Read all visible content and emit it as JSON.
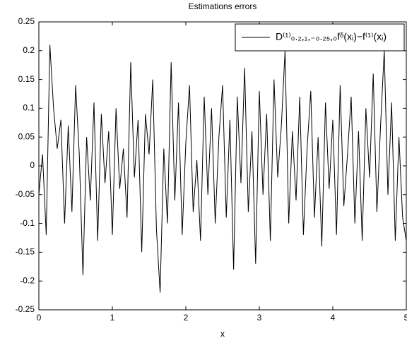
{
  "chart_data": {
    "type": "line",
    "title": "Estimations errors",
    "x_label": "x",
    "x": [
      0,
      0.05,
      0.1,
      0.15,
      0.2,
      0.25,
      0.3,
      0.35,
      0.4,
      0.45,
      0.5,
      0.55,
      0.6,
      0.65,
      0.7,
      0.75,
      0.8,
      0.85,
      0.9,
      0.95,
      1,
      1.05,
      1.1,
      1.15,
      1.2,
      1.25,
      1.3,
      1.35,
      1.4,
      1.45,
      1.5,
      1.55,
      1.6,
      1.65,
      1.7,
      1.75,
      1.8,
      1.85,
      1.9,
      1.95,
      2,
      2.05,
      2.1,
      2.15,
      2.2,
      2.25,
      2.3,
      2.35,
      2.4,
      2.45,
      2.5,
      2.55,
      2.6,
      2.65,
      2.7,
      2.75,
      2.8,
      2.85,
      2.9,
      2.95,
      3,
      3.05,
      3.1,
      3.15,
      3.2,
      3.25,
      3.3,
      3.35,
      3.4,
      3.45,
      3.5,
      3.55,
      3.6,
      3.65,
      3.7,
      3.75,
      3.8,
      3.85,
      3.9,
      3.95,
      4,
      4.05,
      4.1,
      4.15,
      4.2,
      4.25,
      4.3,
      4.35,
      4.4,
      4.45,
      4.5,
      4.55,
      4.6,
      4.65,
      4.7,
      4.75,
      4.8,
      4.85,
      4.9,
      4.95,
      5
    ],
    "series": [
      {
        "name": "D⁽¹⁾₀.₂,₁,₋₀.₂₅,₀fᵟ(xᵢ)−f⁽¹⁾(xᵢ)",
        "color": "#000000",
        "values": [
          -0.05,
          0.02,
          -0.12,
          0.21,
          0.1,
          0.03,
          0.08,
          -0.1,
          0.07,
          -0.08,
          0.14,
          0.02,
          -0.19,
          0.05,
          -0.06,
          0.11,
          -0.13,
          0.09,
          -0.03,
          0.06,
          -0.12,
          0.1,
          -0.04,
          0.03,
          -0.09,
          0.18,
          -0.02,
          0.08,
          -0.15,
          0.09,
          0.02,
          0.15,
          -0.11,
          -0.22,
          0.03,
          -0.1,
          0.18,
          -0.06,
          0.11,
          -0.12,
          0.04,
          0.14,
          -0.08,
          0.01,
          -0.13,
          0.12,
          -0.05,
          0.1,
          -0.1,
          0.05,
          0.14,
          -0.09,
          0.08,
          -0.18,
          0.12,
          -0.03,
          0.17,
          -0.08,
          0.06,
          -0.17,
          0.13,
          -0.05,
          0.09,
          -0.13,
          0.15,
          -0.02,
          0.07,
          0.2,
          -0.1,
          0.06,
          -0.06,
          0.12,
          -0.12,
          0.03,
          0.13,
          -0.09,
          0.05,
          -0.14,
          0.11,
          -0.04,
          0.08,
          -0.12,
          0.14,
          -0.07,
          0.02,
          0.12,
          -0.1,
          0.06,
          -0.13,
          0.1,
          -0.02,
          0.16,
          -0.08,
          0.07,
          0.2,
          -0.05,
          0.11,
          -0.13,
          0.05,
          -0.09,
          -0.13
        ]
      }
    ],
    "xlim": [
      0,
      5
    ],
    "ylim": [
      -0.25,
      0.25
    ],
    "xticks": [
      0,
      1,
      2,
      3,
      4,
      5
    ],
    "yticks": [
      -0.25,
      -0.2,
      -0.15,
      -0.1,
      -0.05,
      0,
      0.05,
      0.1,
      0.15,
      0.2,
      0.25
    ],
    "legend": "upper right"
  }
}
